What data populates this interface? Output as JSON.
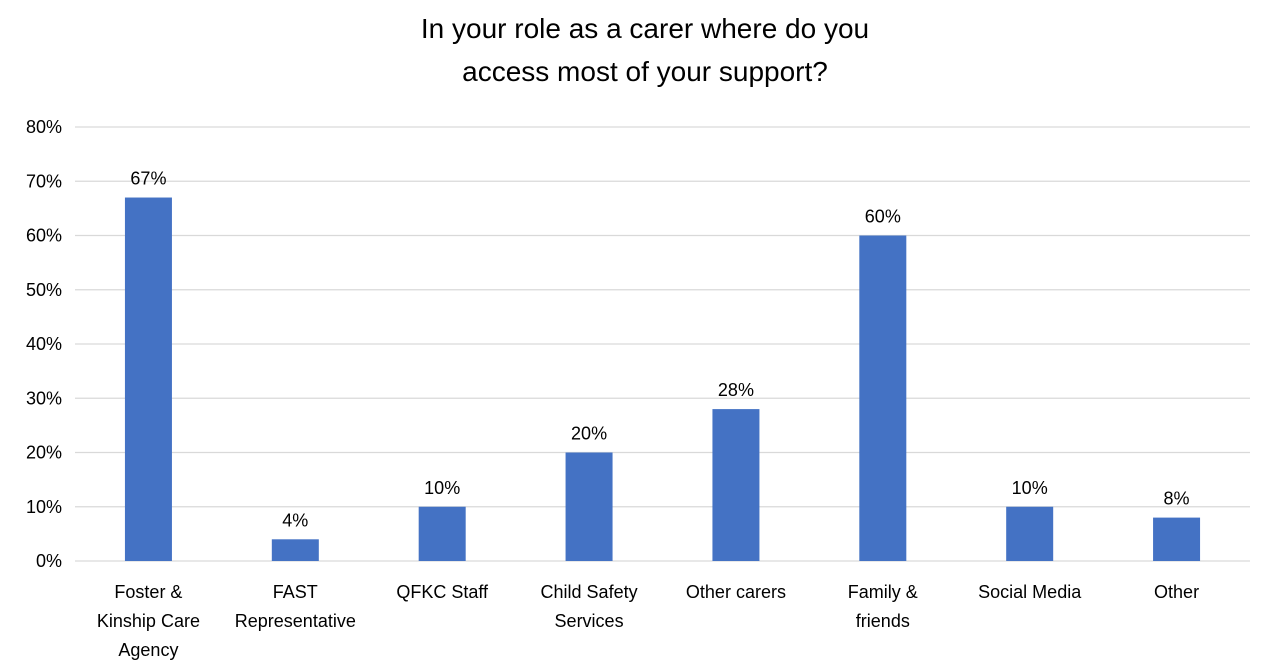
{
  "chart_data": {
    "type": "bar",
    "title_lines": [
      "In your role as a carer where do you",
      "access most of your support?"
    ],
    "categories": [
      [
        "Foster &",
        "Kinship Care",
        "Agency"
      ],
      [
        "FAST",
        "Representative"
      ],
      [
        "QFKC Staff"
      ],
      [
        "Child Safety",
        "Services"
      ],
      [
        "Other carers"
      ],
      [
        "Family &",
        "friends"
      ],
      [
        "Social Media"
      ],
      [
        "Other"
      ]
    ],
    "values": [
      67,
      4,
      10,
      20,
      28,
      60,
      10,
      8
    ],
    "data_labels": [
      "67%",
      "4%",
      "10%",
      "20%",
      "28%",
      "60%",
      "10%",
      "8%"
    ],
    "ylim": [
      0,
      80
    ],
    "yticks": [
      0,
      10,
      20,
      30,
      40,
      50,
      60,
      70,
      80
    ],
    "ytick_labels": [
      "0%",
      "10%",
      "20%",
      "30%",
      "40%",
      "50%",
      "60%",
      "70%",
      "80%"
    ],
    "grid": true,
    "legend": "none",
    "bar_color": "#4472c4"
  }
}
